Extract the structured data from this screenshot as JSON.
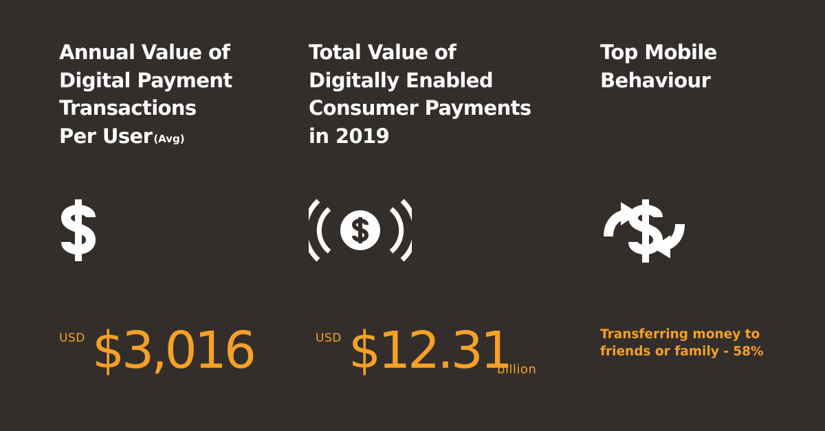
{
  "colors": {
    "background": "#332e2b",
    "text": "#ffffff",
    "accent": "#f5a128"
  },
  "panels": [
    {
      "title_lines": [
        "Annual Value of",
        "Digital Payment",
        "Transactions",
        "Per User"
      ],
      "title_suffix": "(Avg)",
      "icon": "dollar-sign-icon",
      "prefix": "USD",
      "value": "$3,016",
      "suffix": ""
    },
    {
      "title_lines": [
        "Total Value of",
        "Digitally Enabled",
        "Consumer Payments",
        "in 2019"
      ],
      "icon": "contactless-dollar-coin-icon",
      "prefix": "USD",
      "value": "$12.31",
      "suffix": "billion"
    },
    {
      "title_lines": [
        "Top Mobile",
        "Behaviour"
      ],
      "icon": "dollar-transfer-arrows-icon",
      "note_lines": [
        "Transferring money to",
        "friends or family - 58%"
      ]
    }
  ]
}
